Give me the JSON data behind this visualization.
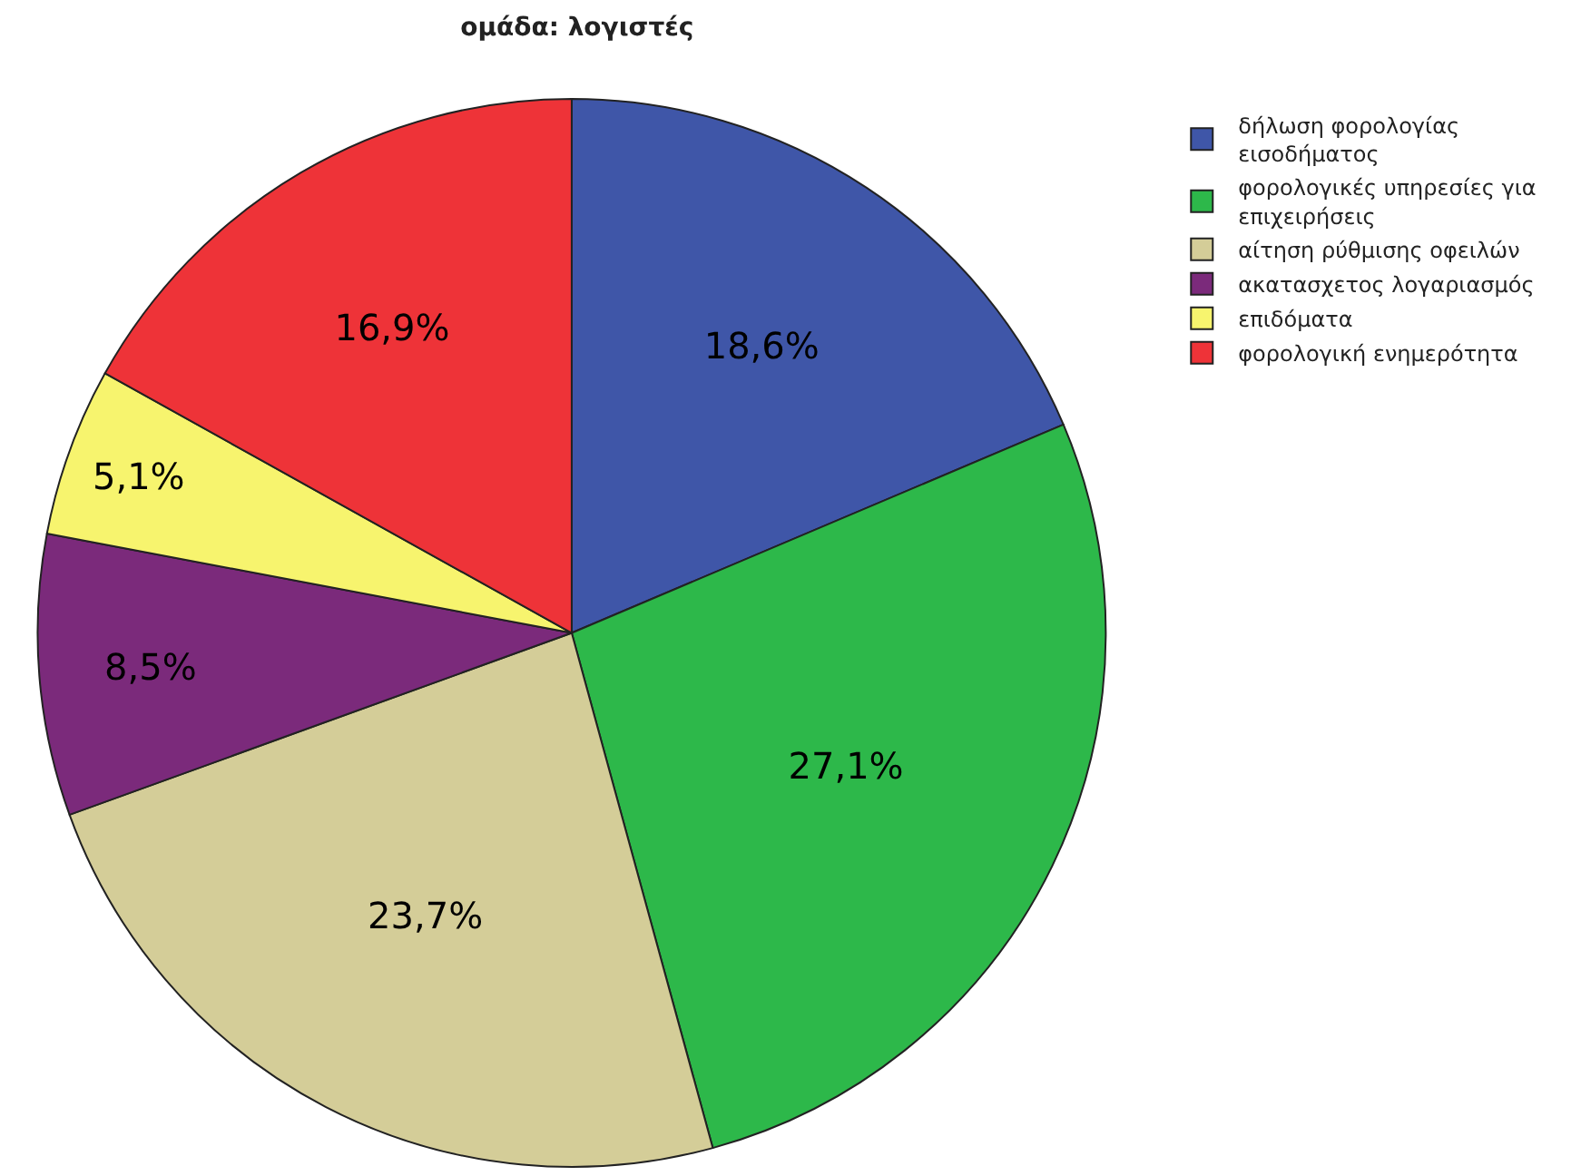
{
  "chart_data": {
    "type": "pie",
    "title": "ομάδα: λογιστές",
    "categories": [
      "δήλωση φορολογίας εισοδήματος",
      "φορολογικές υπηρεσίες για επιχειρήσεις",
      "αίτηση ρύθμισης οφειλών",
      "ακατασχετος λογαριασμός",
      "επιδόματα",
      "φορολογική ενημερότητα"
    ],
    "values": [
      18.6,
      27.1,
      23.7,
      8.5,
      5.1,
      16.9
    ],
    "value_labels": [
      "18,6%",
      "27,1%",
      "23,7%",
      "8,5%",
      "5,1%",
      "16,9%"
    ],
    "colors": [
      "#3f56a8",
      "#2db84a",
      "#d4cd98",
      "#7b2a7b",
      "#f7f46e",
      "#ee3338"
    ],
    "legend": "top right"
  }
}
